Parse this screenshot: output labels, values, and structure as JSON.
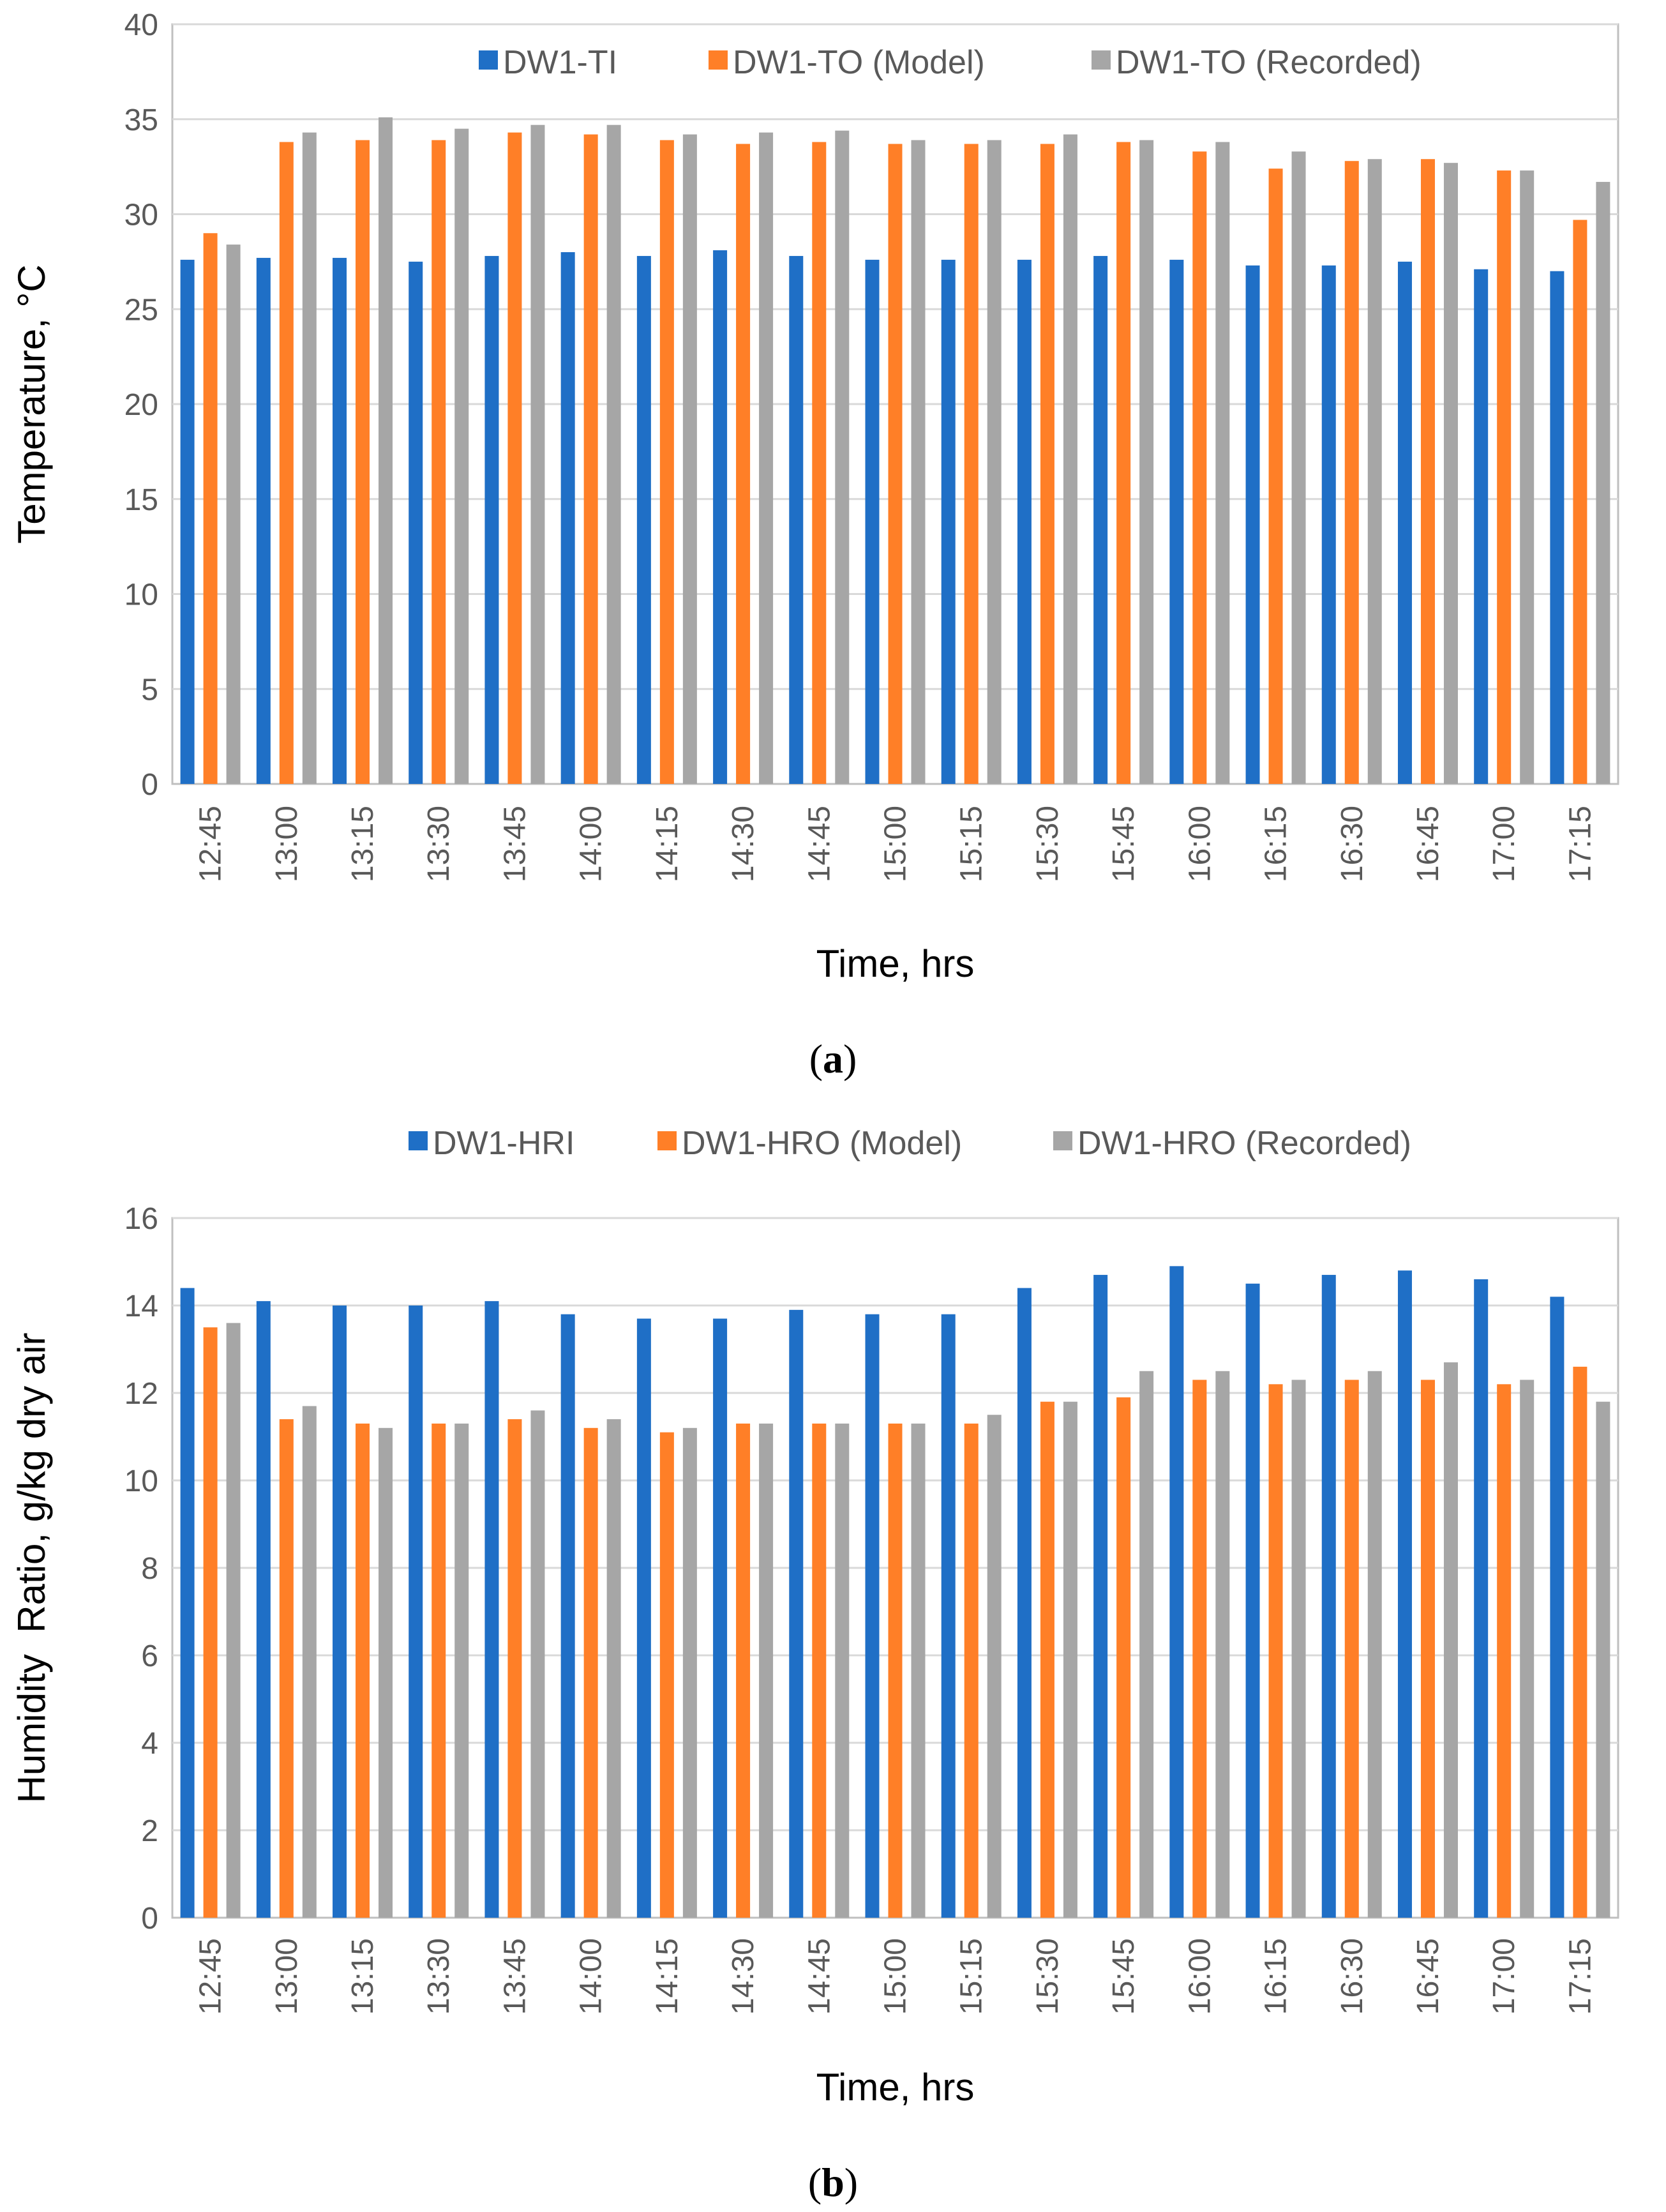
{
  "colors": {
    "series1": "#1f6fc6",
    "series2": "#ff7f27",
    "series3": "#a6a6a6",
    "grid": "#d9d9d9",
    "frame": "#bfbfbf",
    "tick_text": "#595959"
  },
  "chart_data": [
    {
      "type": "bar",
      "title": "",
      "panel_label": "a",
      "xlabel": "Time, hrs",
      "ylabel": "Temperature, °C",
      "ylim": [
        0,
        40
      ],
      "yticks": [
        "0",
        "5",
        "10",
        "15",
        "20",
        "25",
        "30",
        "35",
        "40"
      ],
      "legend_position": "top-right",
      "grid": true,
      "categories": [
        "12:45",
        "13:00",
        "13:15",
        "13:30",
        "13:45",
        "14:00",
        "14:15",
        "14:30",
        "14:45",
        "15:00",
        "15:15",
        "15:30",
        "15:45",
        "16:00",
        "16:15",
        "16:30",
        "16:45",
        "17:00",
        "17:15"
      ],
      "series": [
        {
          "name": "DW1-TI",
          "values": [
            27.6,
            27.7,
            27.7,
            27.5,
            27.8,
            28.0,
            27.8,
            28.1,
            27.8,
            27.6,
            27.6,
            27.6,
            27.8,
            27.6,
            27.3,
            27.3,
            27.5,
            27.1,
            27.0
          ]
        },
        {
          "name": "DW1-TO (Model)",
          "values": [
            29.0,
            33.8,
            33.9,
            33.9,
            34.3,
            34.2,
            33.9,
            33.7,
            33.8,
            33.7,
            33.7,
            33.7,
            33.8,
            33.3,
            32.4,
            32.8,
            32.9,
            32.3,
            29.7
          ]
        },
        {
          "name": "DW1-TO (Recorded)",
          "values": [
            28.4,
            34.3,
            35.1,
            34.5,
            34.7,
            34.7,
            34.2,
            34.3,
            34.4,
            33.9,
            33.9,
            34.2,
            33.9,
            33.8,
            33.3,
            32.9,
            32.7,
            32.3,
            31.7
          ]
        }
      ]
    },
    {
      "type": "bar",
      "title": "",
      "panel_label": "b",
      "xlabel": "Time, hrs",
      "ylabel": "Humidity  Ratio, g/kg dry air",
      "ylim": [
        0,
        16
      ],
      "yticks": [
        "0",
        "2",
        "4",
        "6",
        "8",
        "10",
        "12",
        "14",
        "16"
      ],
      "legend_position": "top",
      "grid": true,
      "categories": [
        "12:45",
        "13:00",
        "13:15",
        "13:30",
        "13:45",
        "14:00",
        "14:15",
        "14:30",
        "14:45",
        "15:00",
        "15:15",
        "15:30",
        "15:45",
        "16:00",
        "16:15",
        "16:30",
        "16:45",
        "17:00",
        "17:15"
      ],
      "series": [
        {
          "name": "DW1-HRI",
          "values": [
            14.4,
            14.1,
            14.0,
            14.0,
            14.1,
            13.8,
            13.7,
            13.7,
            13.9,
            13.8,
            13.8,
            14.4,
            14.7,
            14.9,
            14.5,
            14.7,
            14.8,
            14.6,
            14.2
          ]
        },
        {
          "name": "DW1-HRO (Model)",
          "values": [
            13.5,
            11.4,
            11.3,
            11.3,
            11.4,
            11.2,
            11.1,
            11.3,
            11.3,
            11.3,
            11.3,
            11.8,
            11.9,
            12.3,
            12.2,
            12.3,
            12.3,
            12.2,
            12.6
          ]
        },
        {
          "name": "DW1-HRO (Recorded)",
          "values": [
            13.6,
            11.7,
            11.2,
            11.3,
            11.6,
            11.4,
            11.2,
            11.3,
            11.3,
            11.3,
            11.5,
            11.8,
            12.5,
            12.5,
            12.3,
            12.5,
            12.7,
            12.3,
            11.8
          ]
        }
      ]
    }
  ]
}
